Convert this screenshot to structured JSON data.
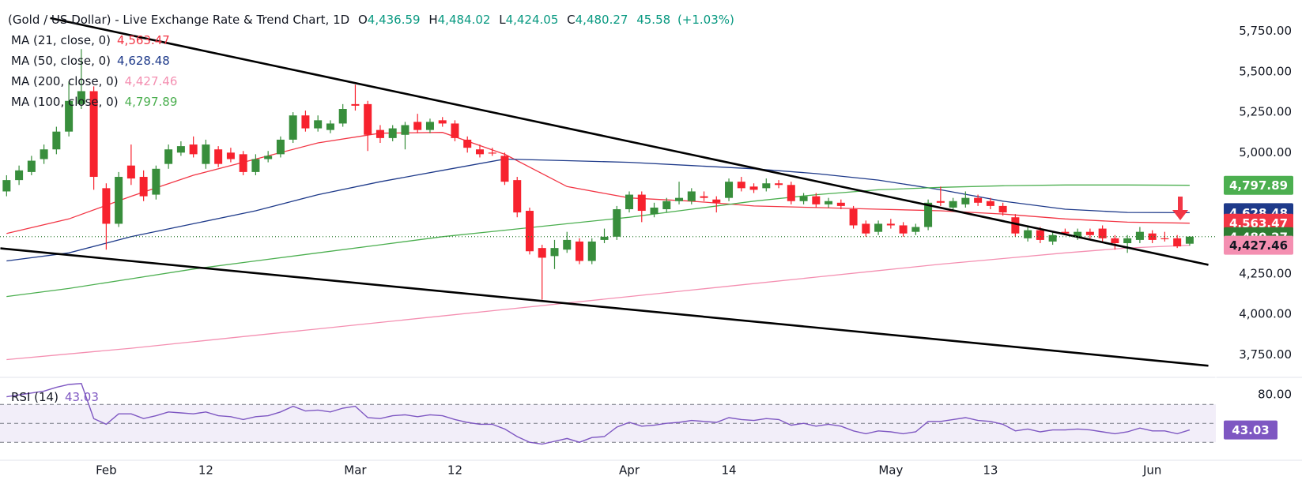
{
  "chart_data": {
    "type": "candlestick",
    "title": "(Gold / US Dollar) - Live Exchange Rate & Trend Chart, 1D",
    "header_values": [
      {
        "key": "O",
        "label": "4,436.59"
      },
      {
        "key": "H",
        "label": "4,484.02"
      },
      {
        "key": "L",
        "label": "4,424.05"
      },
      {
        "key": "C",
        "label": "4,480.27"
      }
    ],
    "change": "45.58",
    "change_pct": "(+1.03%)",
    "candles": {
      "up_color": "#388e3c",
      "down_color": "#f7222e",
      "open": [
        4760,
        4830,
        4880,
        4960,
        5020,
        5130,
        5300,
        5380,
        4780,
        4560,
        4920,
        4850,
        4740,
        4930,
        5000,
        5050,
        4930,
        5020,
        5000,
        4990,
        4880,
        4960,
        4990,
        5080,
        5230,
        5150,
        5140,
        5180,
        5300,
        5300,
        5140,
        5090,
        5110,
        5190,
        5140,
        5200,
        5180,
        5080,
        5020,
        5000,
        4980,
        4830,
        4640,
        4410,
        4360,
        4400,
        4450,
        4330,
        4460,
        4480,
        4650,
        4740,
        4620,
        4650,
        4700,
        4700,
        4730,
        4710,
        4720,
        4820,
        4790,
        4780,
        4810,
        4800,
        4700,
        4730,
        4680,
        4690,
        4650,
        4560,
        4510,
        4560,
        4550,
        4510,
        4540,
        4700,
        4660,
        4680,
        4720,
        4700,
        4670,
        4600,
        4470,
        4520,
        4450,
        4510,
        4480,
        4510,
        4530,
        4470,
        4440,
        4460,
        4500,
        4470,
        4470,
        4436.59
      ],
      "high": [
        4860,
        4920,
        4980,
        5050,
        5160,
        5440,
        5640,
        5410,
        4810,
        4880,
        5050,
        4890,
        4920,
        5050,
        5070,
        5100,
        5080,
        5040,
        5030,
        5010,
        4990,
        5010,
        5100,
        5250,
        5260,
        5230,
        5200,
        5300,
        5420,
        5320,
        5170,
        5170,
        5190,
        5240,
        5210,
        5220,
        5200,
        5100,
        5050,
        5030,
        5000,
        4850,
        4660,
        4430,
        4460,
        4510,
        4470,
        4470,
        4530,
        4670,
        4760,
        4760,
        4690,
        4720,
        4820,
        4780,
        4760,
        4730,
        4840,
        4850,
        4810,
        4840,
        4830,
        4820,
        4750,
        4750,
        4720,
        4710,
        4670,
        4580,
        4580,
        4590,
        4570,
        4560,
        4710,
        4790,
        4720,
        4760,
        4740,
        4720,
        4690,
        4620,
        4540,
        4540,
        4510,
        4530,
        4530,
        4530,
        4550,
        4490,
        4490,
        4540,
        4520,
        4510,
        4490,
        4484.02
      ],
      "low": [
        4730,
        4800,
        4860,
        4930,
        4990,
        5100,
        5270,
        4770,
        4400,
        4540,
        4800,
        4700,
        4710,
        4900,
        4980,
        4970,
        4900,
        4910,
        4940,
        4860,
        4860,
        4940,
        4970,
        5060,
        5130,
        5130,
        5120,
        5160,
        5260,
        5010,
        5060,
        5070,
        5020,
        5120,
        5120,
        5160,
        5070,
        5000,
        4970,
        4980,
        4800,
        4600,
        4370,
        4090,
        4280,
        4380,
        4310,
        4310,
        4440,
        4460,
        4630,
        4570,
        4600,
        4630,
        4680,
        4680,
        4700,
        4630,
        4700,
        4760,
        4750,
        4760,
        4780,
        4680,
        4680,
        4660,
        4660,
        4650,
        4530,
        4480,
        4490,
        4530,
        4480,
        4490,
        4520,
        4670,
        4640,
        4660,
        4670,
        4650,
        4610,
        4480,
        4450,
        4440,
        4430,
        4490,
        4460,
        4470,
        4450,
        4400,
        4380,
        4440,
        4440,
        4450,
        4410,
        4424.05
      ],
      "close": [
        4830,
        4890,
        4950,
        5020,
        5130,
        5320,
        5380,
        4850,
        4560,
        4850,
        4840,
        4730,
        4900,
        5020,
        5040,
        4990,
        5050,
        4930,
        4960,
        4880,
        4960,
        4980,
        5080,
        5230,
        5150,
        5200,
        5180,
        5270,
        5290,
        5110,
        5090,
        5150,
        5170,
        5140,
        5190,
        5180,
        5090,
        5030,
        4990,
        4995,
        4820,
        4630,
        4390,
        4350,
        4410,
        4460,
        4330,
        4450,
        4480,
        4650,
        4740,
        4640,
        4660,
        4700,
        4720,
        4760,
        4720,
        4690,
        4820,
        4780,
        4770,
        4810,
        4800,
        4700,
        4730,
        4680,
        4700,
        4670,
        4550,
        4500,
        4560,
        4550,
        4500,
        4540,
        4690,
        4690,
        4700,
        4720,
        4690,
        4670,
        4630,
        4500,
        4520,
        4460,
        4490,
        4500,
        4510,
        4490,
        4470,
        4440,
        4470,
        4510,
        4460,
        4465,
        4420,
        4480.27
      ]
    },
    "moving_averages": [
      {
        "name": "MA (21, close, 0)",
        "color": "#f23645",
        "tag_text": "#ffffff",
        "x": [
          0,
          5,
          10,
          15,
          20,
          25,
          30,
          35,
          40,
          45,
          50,
          55,
          60,
          65,
          70,
          75,
          80,
          85,
          90,
          95
        ],
        "values": [
          4500,
          4590,
          4730,
          4860,
          4960,
          5060,
          5120,
          5125,
          4990,
          4790,
          4720,
          4700,
          4670,
          4660,
          4650,
          4640,
          4620,
          4590,
          4570,
          4563.47
        ],
        "last_label": "4,563.47"
      },
      {
        "name": "MA (50, close, 0)",
        "color": "#1e3a8a",
        "tag_text": "#ffffff",
        "x": [
          0,
          5,
          10,
          15,
          20,
          25,
          30,
          35,
          40,
          45,
          50,
          55,
          60,
          65,
          70,
          75,
          80,
          85,
          90,
          95
        ],
        "values": [
          4330,
          4380,
          4480,
          4560,
          4640,
          4740,
          4820,
          4890,
          4960,
          4950,
          4940,
          4920,
          4900,
          4870,
          4830,
          4770,
          4700,
          4650,
          4630,
          4628.48
        ],
        "last_label": "4,628.48"
      },
      {
        "name": "MA (200, close, 0)",
        "color": "#f48fb1",
        "tag_text": "#131722",
        "x": [
          0,
          5,
          10,
          15,
          20,
          25,
          30,
          35,
          40,
          45,
          50,
          55,
          60,
          65,
          70,
          75,
          80,
          85,
          90,
          95
        ],
        "values": [
          3720,
          3755,
          3790,
          3830,
          3870,
          3910,
          3950,
          3990,
          4030,
          4070,
          4110,
          4150,
          4190,
          4230,
          4270,
          4310,
          4345,
          4380,
          4410,
          4427.46
        ],
        "last_label": "4,427.46"
      },
      {
        "name": "MA (100, close, 0)",
        "color": "#4caf50",
        "tag_text": "#ffffff",
        "x": [
          0,
          5,
          10,
          15,
          20,
          25,
          30,
          35,
          40,
          45,
          50,
          55,
          60,
          65,
          70,
          75,
          80,
          85,
          90,
          95
        ],
        "values": [
          4110,
          4160,
          4220,
          4280,
          4330,
          4380,
          4430,
          4480,
          4520,
          4560,
          4600,
          4650,
          4700,
          4740,
          4770,
          4785,
          4795,
          4800,
          4800,
          4797.89
        ],
        "last_label": "4,797.89"
      }
    ],
    "trendlines": [
      {
        "color": "#000000",
        "x": [
          3.5,
          96.5
        ],
        "y": [
          5832,
          4306
        ]
      },
      {
        "color": "#000000",
        "x": [
          -0.5,
          96.5
        ],
        "y": [
          4408,
          3682
        ]
      }
    ],
    "price_line_color": "#2e7d32",
    "ylim": [
      3610,
      5895
    ],
    "yticks": [
      {
        "value": 3750,
        "label": "3,750.00"
      },
      {
        "value": 4000,
        "label": "4,000.00"
      },
      {
        "value": 4250,
        "label": "4,250.00"
      },
      {
        "value": 5000,
        "label": "5,000.00"
      },
      {
        "value": 5250,
        "label": "5,250.00"
      },
      {
        "value": 5500,
        "label": "5,500.00"
      },
      {
        "value": 5750,
        "label": "5,750.00"
      }
    ],
    "xlim": [
      -0.53,
      97.1
    ],
    "xticks": [
      {
        "value": 8,
        "label": "Feb"
      },
      {
        "value": 16,
        "label": "12"
      },
      {
        "value": 28,
        "label": "Mar"
      },
      {
        "value": 36,
        "label": "12"
      },
      {
        "value": 50,
        "label": "Apr"
      },
      {
        "value": 58,
        "label": "14"
      },
      {
        "value": 71,
        "label": "May"
      },
      {
        "value": 79,
        "label": "13"
      },
      {
        "value": 92,
        "label": "Jun"
      }
    ],
    "rsi": {
      "name": "RSI (14)",
      "color": "#7e57c2",
      "values": [
        78,
        80,
        82,
        84,
        88,
        91,
        92,
        55,
        49,
        60,
        60,
        55,
        58,
        62,
        61,
        60,
        62,
        58,
        57,
        54,
        57,
        58,
        62,
        68,
        63,
        64,
        62,
        66,
        68,
        56,
        55,
        58,
        59,
        57,
        59,
        58,
        54,
        51,
        49,
        49,
        44,
        36,
        30,
        28,
        31,
        34,
        30,
        35,
        36,
        46,
        51,
        47,
        48,
        50,
        51,
        53,
        52,
        51,
        56,
        54,
        53,
        55,
        54,
        48,
        50,
        47,
        49,
        47,
        42,
        39,
        42,
        41,
        39,
        41,
        52,
        52,
        54,
        56,
        53,
        52,
        49,
        42,
        44,
        41,
        43,
        43,
        44,
        43,
        41,
        39,
        41,
        45,
        42,
        42,
        39,
        43.03
      ],
      "last_label": "43.03",
      "ylim": [
        11,
        96
      ],
      "yticks": [
        {
          "value": 80,
          "label": "80.00"
        }
      ],
      "bands": [
        70,
        50,
        30
      ]
    }
  }
}
